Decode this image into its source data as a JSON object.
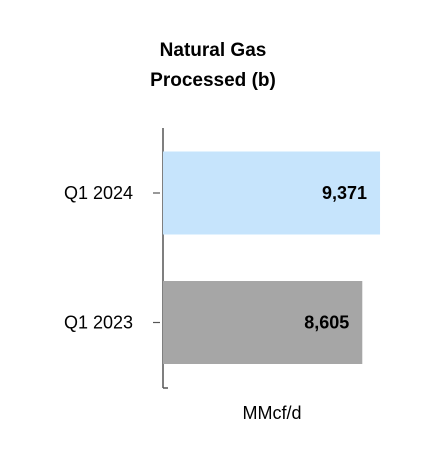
{
  "chart_data": {
    "type": "hbar",
    "title": "Natural Gas Processed (b)",
    "categories": [
      "Q1 2024",
      "Q1 2023"
    ],
    "values": [
      9371,
      8605
    ],
    "value_labels": [
      "9,371",
      "8,605"
    ],
    "colors": [
      "#c6e4fc",
      "#a6a6a6"
    ],
    "xlabel": "MMcf/d",
    "xlim": [
      0,
      10000
    ]
  }
}
